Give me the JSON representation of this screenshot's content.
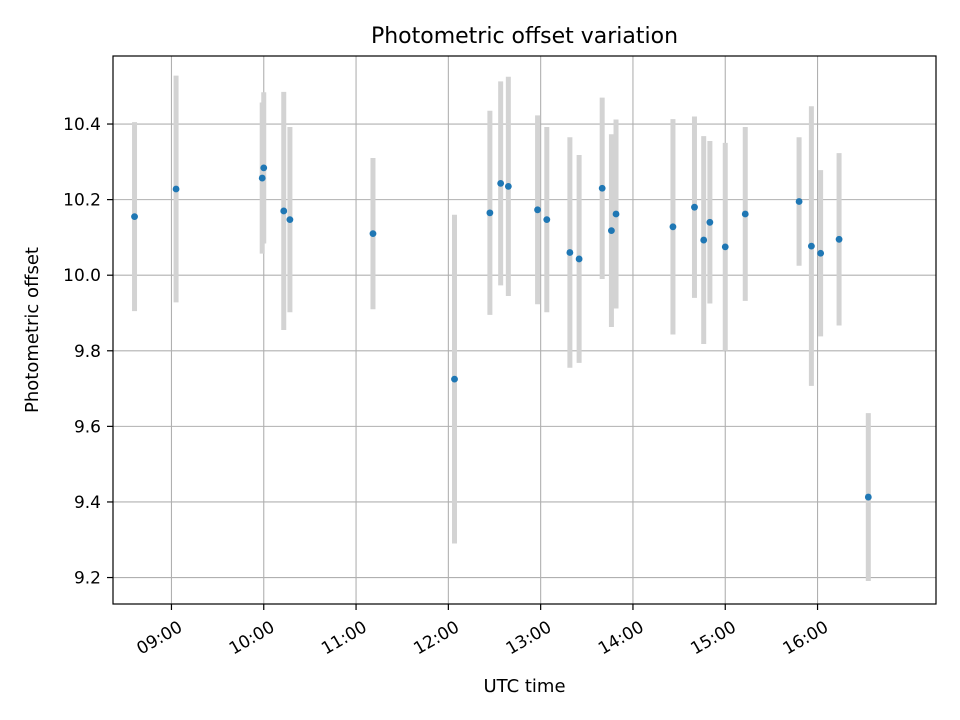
{
  "chart_data": {
    "type": "scatter",
    "title": "Photometric offset variation",
    "xlabel": "UTC time",
    "ylabel": "Photometric offset",
    "x_axis": {
      "type": "time",
      "range": [
        "08:22",
        "17:17"
      ],
      "ticks": [
        {
          "value": "09:00",
          "label": "09:00"
        },
        {
          "value": "10:00",
          "label": "10:00"
        },
        {
          "value": "11:00",
          "label": "11:00"
        },
        {
          "value": "12:00",
          "label": "12:00"
        },
        {
          "value": "13:00",
          "label": "13:00"
        },
        {
          "value": "14:00",
          "label": "14:00"
        },
        {
          "value": "15:00",
          "label": "15:00"
        },
        {
          "value": "16:00",
          "label": "16:00"
        }
      ]
    },
    "y_axis": {
      "range": [
        9.13,
        10.58
      ],
      "ticks": [
        {
          "value": 9.2,
          "label": "9.2"
        },
        {
          "value": 9.4,
          "label": "9.4"
        },
        {
          "value": 9.6,
          "label": "9.6"
        },
        {
          "value": 9.8,
          "label": "9.8"
        },
        {
          "value": 10.0,
          "label": "10.0"
        },
        {
          "value": 10.2,
          "label": "10.2"
        },
        {
          "value": 10.4,
          "label": "10.4"
        }
      ]
    },
    "grid": true,
    "colors": {
      "point": "#1f77b4",
      "errorbar": "#d3d3d3",
      "grid": "#b0b0b0",
      "axis": "#000000"
    },
    "points": [
      {
        "time": "08:36",
        "y": 10.155,
        "err": 0.25
      },
      {
        "time": "09:03",
        "y": 10.228,
        "err": 0.3
      },
      {
        "time": "09:59",
        "y": 10.257,
        "err": 0.2
      },
      {
        "time": "10:00",
        "y": 10.284,
        "err": 0.2
      },
      {
        "time": "10:13",
        "y": 10.17,
        "err": 0.315
      },
      {
        "time": "10:17",
        "y": 10.147,
        "err": 0.245
      },
      {
        "time": "11:11",
        "y": 10.11,
        "err": 0.2
      },
      {
        "time": "12:04",
        "y": 9.725,
        "err": 0.435
      },
      {
        "time": "12:27",
        "y": 10.165,
        "err": 0.27
      },
      {
        "time": "12:34",
        "y": 10.243,
        "err": 0.27
      },
      {
        "time": "12:39",
        "y": 10.235,
        "err": 0.29
      },
      {
        "time": "12:58",
        "y": 10.173,
        "err": 0.25
      },
      {
        "time": "13:04",
        "y": 10.147,
        "err": 0.245
      },
      {
        "time": "13:19",
        "y": 10.06,
        "err": 0.305
      },
      {
        "time": "13:25",
        "y": 10.043,
        "err": 0.275
      },
      {
        "time": "13:40",
        "y": 10.23,
        "err": 0.24
      },
      {
        "time": "13:46",
        "y": 10.118,
        "err": 0.255
      },
      {
        "time": "13:49",
        "y": 10.162,
        "err": 0.25
      },
      {
        "time": "14:26",
        "y": 10.128,
        "err": 0.285
      },
      {
        "time": "14:40",
        "y": 10.18,
        "err": 0.24
      },
      {
        "time": "14:46",
        "y": 10.093,
        "err": 0.275
      },
      {
        "time": "14:50",
        "y": 10.14,
        "err": 0.215
      },
      {
        "time": "15:00",
        "y": 10.075,
        "err": 0.275
      },
      {
        "time": "15:13",
        "y": 10.162,
        "err": 0.23
      },
      {
        "time": "15:48",
        "y": 10.195,
        "err": 0.17
      },
      {
        "time": "15:56",
        "y": 10.077,
        "err": 0.37
      },
      {
        "time": "16:02",
        "y": 10.058,
        "err": 0.22
      },
      {
        "time": "16:14",
        "y": 10.095,
        "err": 0.228
      },
      {
        "time": "16:33",
        "y": 9.413,
        "err": 0.222
      }
    ]
  }
}
